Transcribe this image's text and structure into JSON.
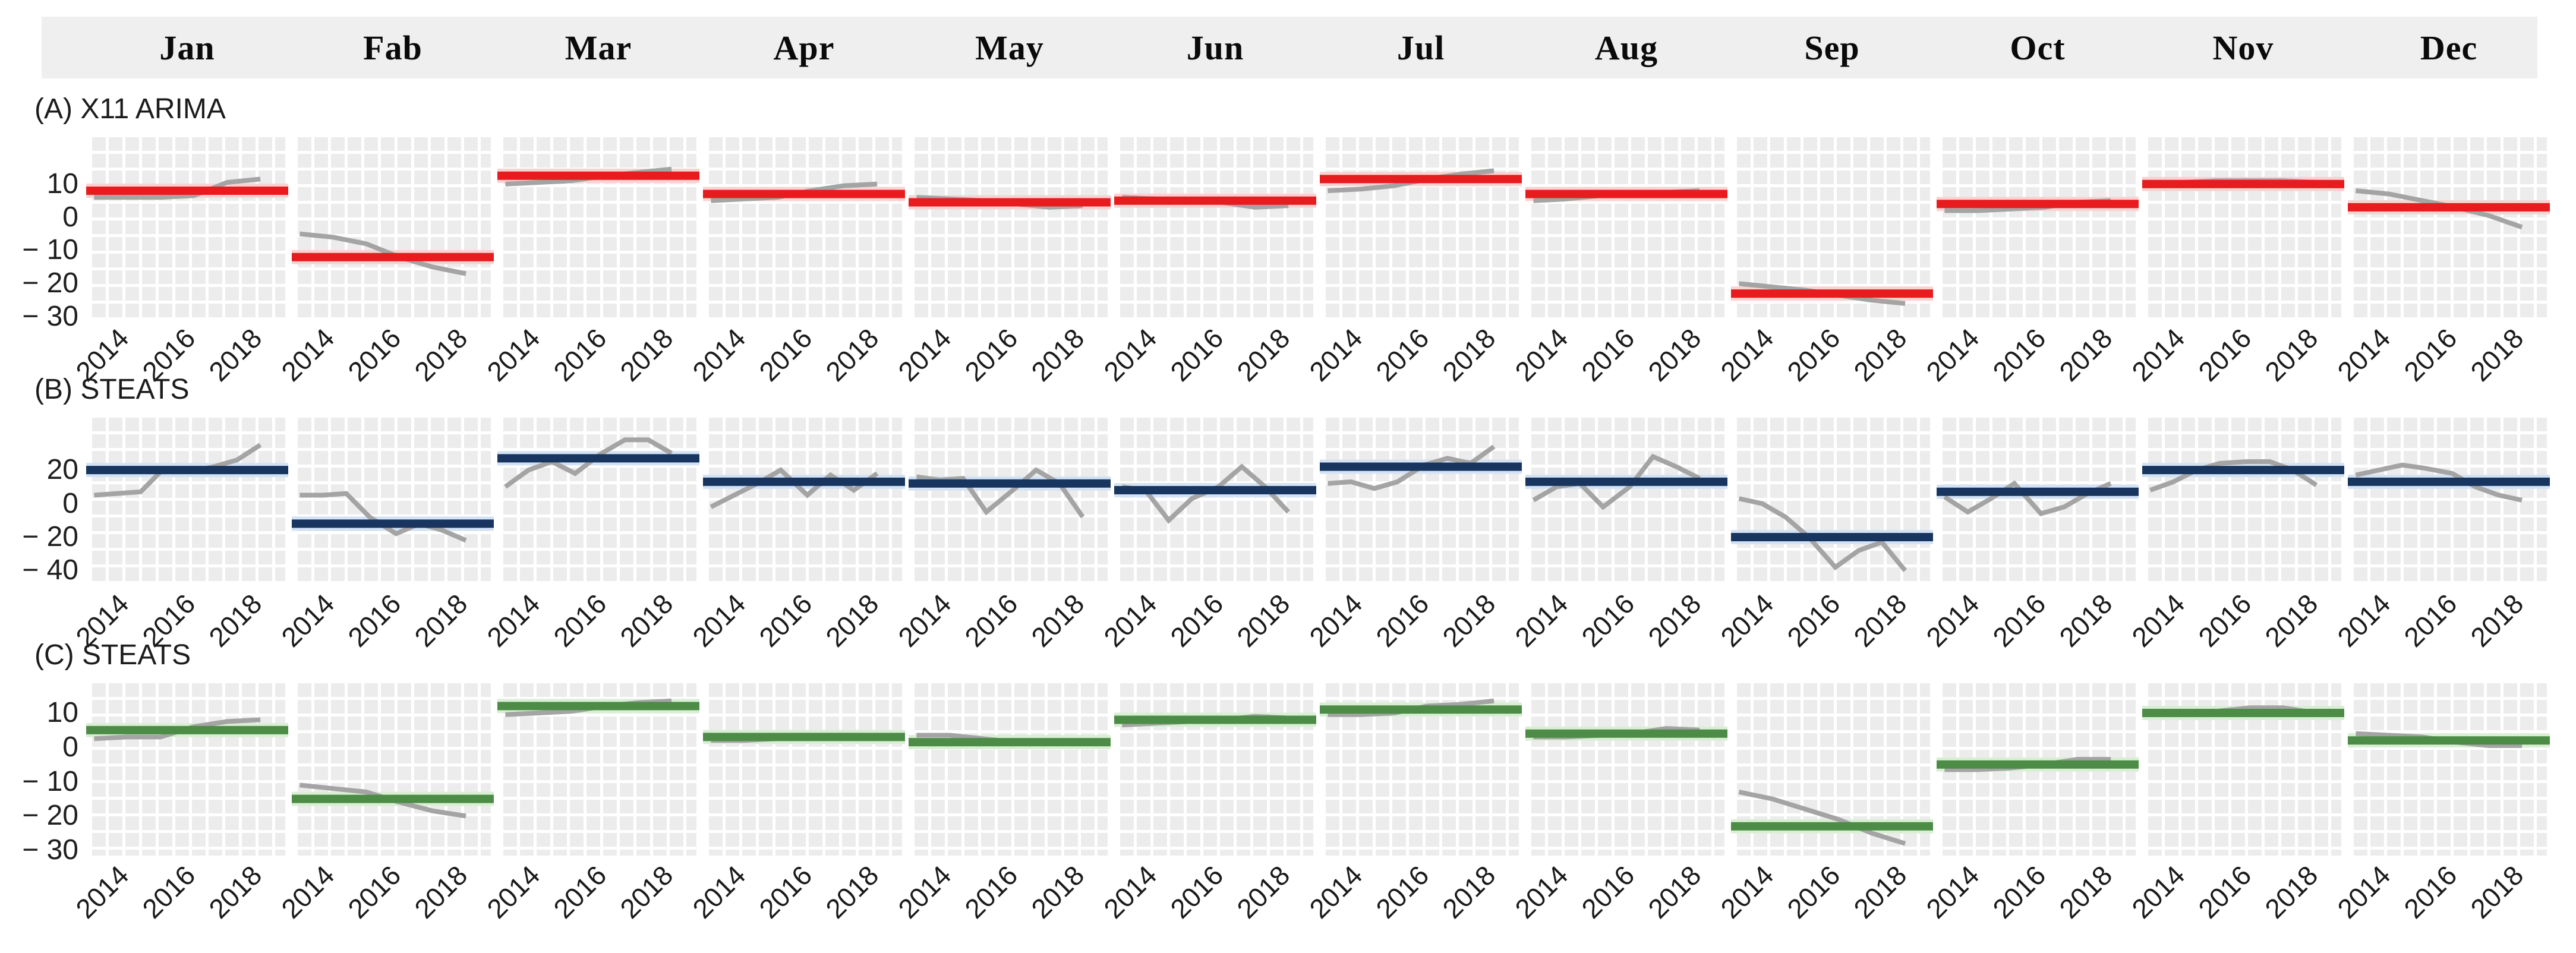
{
  "header": {
    "months": [
      "Jan",
      "Fab",
      "Mar",
      "Apr",
      "May",
      "Jun",
      "Jul",
      "Aug",
      "Sep",
      "Oct",
      "Nov",
      "Dec"
    ]
  },
  "colors": {
    "row_a_trend": "#e81b1e",
    "row_a_halo": "#f9d2d2",
    "row_b_trend": "#17355e",
    "row_b_halo": "#d3e2f4",
    "row_c_trend": "#4c8c47",
    "row_c_halo": "#d9efd4",
    "data_line": "#a4a4a4",
    "panel_background": "#ececec",
    "grid": "#ffffff",
    "header_strip": "#efefef"
  },
  "chart_data": {
    "type": "line",
    "title": "",
    "x_ticks": [
      2014,
      2016,
      2018
    ],
    "x_domain": [
      2012.85,
      2018.75
    ],
    "grid": "on",
    "rows": [
      {
        "label": "(A) X11 ARIMA",
        "trend_color": "#e81b1e",
        "halo_color": "#f9d2d2",
        "y_ticks": [
          {
            "v": 10,
            "label": "10"
          },
          {
            "v": 0,
            "label": "0"
          },
          {
            "v": -10,
            "label": "− 10"
          },
          {
            "v": -20,
            "label": "− 20"
          },
          {
            "v": -30,
            "label": "− 30"
          }
        ],
        "y_domain": [
          -30.5,
          25
        ],
        "years": [
          2013,
          2014,
          2015,
          2016,
          2017,
          2018
        ],
        "series": [
          {
            "month": "Jan",
            "trend": 8,
            "values": [
              6,
              6,
              6,
              6.5,
              10.5,
              11.5
            ]
          },
          {
            "month": "Fab",
            "trend": -12,
            "values": [
              -5,
              -6,
              -8,
              -12,
              -15,
              -17
            ]
          },
          {
            "month": "Mar",
            "trend": 12.5,
            "values": [
              10,
              10.5,
              11,
              12.5,
              13.5,
              14.5
            ]
          },
          {
            "month": "Apr",
            "trend": 7,
            "values": [
              5,
              5.5,
              6,
              8,
              9.5,
              10
            ]
          },
          {
            "month": "May",
            "trend": 4.5,
            "values": [
              6,
              5.5,
              5,
              4,
              3,
              3.5
            ]
          },
          {
            "month": "Jun",
            "trend": 5,
            "values": [
              6,
              5.5,
              5,
              4.5,
              3,
              3.5
            ]
          },
          {
            "month": "Jul",
            "trend": 11.5,
            "values": [
              8,
              8.5,
              9.5,
              11.5,
              13,
              14
            ]
          },
          {
            "month": "Aug",
            "trend": 7,
            "values": [
              5,
              5.5,
              6.5,
              7,
              7.5,
              8
            ]
          },
          {
            "month": "Sep",
            "trend": -23,
            "values": [
              -20,
              -21,
              -22,
              -23.5,
              -25,
              -26
            ]
          },
          {
            "month": "Oct",
            "trend": 4,
            "values": [
              2,
              2,
              2.5,
              3,
              4.5,
              5
            ]
          },
          {
            "month": "Nov",
            "trend": 10,
            "values": [
              10,
              10.5,
              11,
              11,
              11,
              10.5
            ]
          },
          {
            "month": "Dec",
            "trend": 3,
            "values": [
              8,
              7,
              5,
              3,
              0.5,
              -3
            ]
          }
        ]
      },
      {
        "label": "(B) STEATS",
        "trend_color": "#17355e",
        "halo_color": "#d3e2f4",
        "y_ticks": [
          {
            "v": 20,
            "label": "20"
          },
          {
            "v": 0,
            "label": "0"
          },
          {
            "v": -20,
            "label": "− 20"
          },
          {
            "v": -40,
            "label": "− 40"
          }
        ],
        "y_domain": [
          -48,
          53
        ],
        "years": [
          2013,
          2013.7,
          2014.4,
          2015.1,
          2015.9,
          2016.6,
          2017.3,
          2018
        ],
        "series": [
          {
            "month": "Jan",
            "trend": 20,
            "values": [
              5,
              6,
              7,
              21,
              19,
              22,
              26,
              35
            ]
          },
          {
            "month": "Fab",
            "trend": -12,
            "values": [
              5,
              5,
              6,
              -8,
              -18,
              -12,
              -16,
              -22
            ]
          },
          {
            "month": "Mar",
            "trend": 27,
            "values": [
              10,
              20,
              25,
              18,
              30,
              38,
              38,
              30
            ]
          },
          {
            "month": "Apr",
            "trend": 13,
            "values": [
              -2,
              5,
              12,
              20,
              5,
              17,
              8,
              18
            ]
          },
          {
            "month": "May",
            "trend": 12,
            "values": [
              16,
              14,
              15,
              -5,
              8,
              20,
              12,
              -8
            ]
          },
          {
            "month": "Jun",
            "trend": 8,
            "values": [
              10,
              8,
              -10,
              3,
              10,
              22,
              10,
              -5
            ]
          },
          {
            "month": "Jul",
            "trend": 22,
            "values": [
              12,
              13,
              9,
              13,
              23,
              27,
              24,
              34
            ]
          },
          {
            "month": "Aug",
            "trend": 13,
            "values": [
              2,
              10,
              12,
              -2,
              10,
              28,
              22,
              15
            ]
          },
          {
            "month": "Sep",
            "trend": -20,
            "values": [
              3,
              0,
              -8,
              -20,
              -38,
              -28,
              -23,
              -40
            ]
          },
          {
            "month": "Oct",
            "trend": 7,
            "values": [
              4,
              -5,
              3,
              12,
              -6,
              -2,
              6,
              12
            ]
          },
          {
            "month": "Nov",
            "trend": 20,
            "values": [
              8,
              13,
              20,
              24,
              25,
              25,
              20,
              11
            ]
          },
          {
            "month": "Dec",
            "trend": 13,
            "values": [
              17,
              20,
              23,
              21,
              18,
              10,
              5,
              2
            ]
          }
        ]
      },
      {
        "label": "(C) STEATS",
        "trend_color": "#4c8c47",
        "halo_color": "#d9efd4",
        "y_ticks": [
          {
            "v": 10,
            "label": "10"
          },
          {
            "v": 0,
            "label": "0"
          },
          {
            "v": -10,
            "label": "− 10"
          },
          {
            "v": -20,
            "label": "− 20"
          },
          {
            "v": -30,
            "label": "− 30"
          }
        ],
        "y_domain": [
          -31.5,
          19.5
        ],
        "years": [
          2013,
          2014,
          2015,
          2016,
          2017,
          2018
        ],
        "series": [
          {
            "month": "Jan",
            "trend": 5,
            "values": [
              2.5,
              3,
              3,
              6,
              7.5,
              8
            ]
          },
          {
            "month": "Fab",
            "trend": -15,
            "values": [
              -11,
              -12,
              -13,
              -16,
              -18.5,
              -20
            ]
          },
          {
            "month": "Mar",
            "trend": 12,
            "values": [
              9.5,
              10,
              10.5,
              12,
              13,
              13.5
            ]
          },
          {
            "month": "Apr",
            "trend": 3,
            "values": [
              2,
              2,
              2.5,
              3,
              3.5,
              3.5
            ]
          },
          {
            "month": "May",
            "trend": 1.5,
            "values": [
              3.5,
              3.5,
              2.5,
              1.5,
              1.5,
              1.5
            ]
          },
          {
            "month": "Jun",
            "trend": 8,
            "values": [
              6.5,
              7,
              7.5,
              8,
              9,
              8.5
            ]
          },
          {
            "month": "Jul",
            "trend": 11,
            "values": [
              9.5,
              9.5,
              10,
              12,
              12.5,
              13.5
            ]
          },
          {
            "month": "Aug",
            "trend": 4,
            "values": [
              3,
              3,
              3.5,
              4,
              5.5,
              5
            ]
          },
          {
            "month": "Sep",
            "trend": -23,
            "values": [
              -13,
              -15,
              -18,
              -21,
              -25,
              -28
            ]
          },
          {
            "month": "Oct",
            "trend": -5,
            "values": [
              -6.5,
              -6.5,
              -6,
              -5,
              -3.5,
              -3.5
            ]
          },
          {
            "month": "Nov",
            "trend": 10,
            "values": [
              10,
              10,
              10.5,
              11.5,
              11.5,
              10
            ]
          },
          {
            "month": "Dec",
            "trend": 2,
            "values": [
              4,
              3.5,
              3,
              1.5,
              0.5,
              0.5
            ]
          }
        ]
      }
    ]
  }
}
